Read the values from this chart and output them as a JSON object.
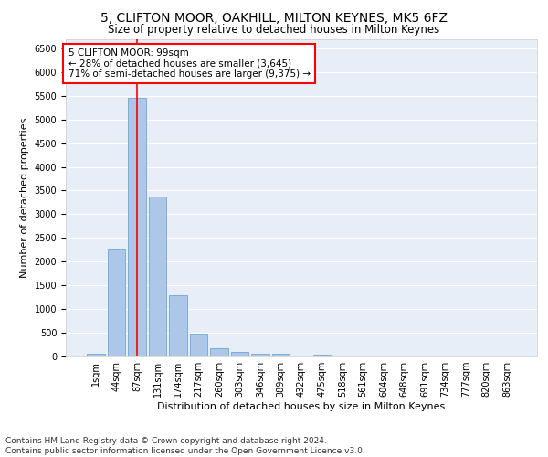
{
  "title1": "5, CLIFTON MOOR, OAKHILL, MILTON KEYNES, MK5 6FZ",
  "title2": "Size of property relative to detached houses in Milton Keynes",
  "xlabel": "Distribution of detached houses by size in Milton Keynes",
  "ylabel": "Number of detached properties",
  "categories": [
    "1sqm",
    "44sqm",
    "87sqm",
    "131sqm",
    "174sqm",
    "217sqm",
    "260sqm",
    "303sqm",
    "346sqm",
    "389sqm",
    "432sqm",
    "475sqm",
    "518sqm",
    "561sqm",
    "604sqm",
    "648sqm",
    "691sqm",
    "734sqm",
    "777sqm",
    "820sqm",
    "863sqm"
  ],
  "bar_values": [
    60,
    2280,
    5450,
    3380,
    1300,
    480,
    165,
    90,
    60,
    55,
    0,
    40,
    0,
    0,
    0,
    0,
    0,
    0,
    0,
    0,
    0
  ],
  "bar_color": "#aec6e8",
  "bar_edge_color": "#5a9fd4",
  "vline_x": 2,
  "vline_color": "red",
  "property_size": "99sqm",
  "annotation_text": "5 CLIFTON MOOR: 99sqm\n← 28% of detached houses are smaller (3,645)\n71% of semi-detached houses are larger (9,375) →",
  "ylim": [
    0,
    6700
  ],
  "yticks": [
    0,
    500,
    1000,
    1500,
    2000,
    2500,
    3000,
    3500,
    4000,
    4500,
    5000,
    5500,
    6000,
    6500
  ],
  "background_color": "#e8eef7",
  "grid_color": "#ffffff",
  "footer_text": "Contains HM Land Registry data © Crown copyright and database right 2024.\nContains public sector information licensed under the Open Government Licence v3.0.",
  "title1_fontsize": 10,
  "title2_fontsize": 8.5,
  "xlabel_fontsize": 8,
  "ylabel_fontsize": 8,
  "tick_fontsize": 7,
  "annotation_fontsize": 7.5,
  "footer_fontsize": 6.5
}
